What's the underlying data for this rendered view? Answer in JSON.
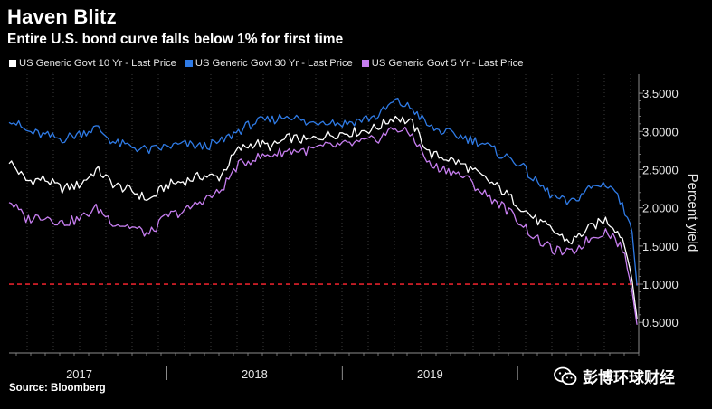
{
  "header": {
    "title": "Haven Blitz",
    "subtitle": "Entire U.S. bond curve falls below 1% for first time"
  },
  "footer": {
    "source": "Source: Bloomberg",
    "watermark": "彭博环球财经"
  },
  "colors": {
    "background": "#000000",
    "series_10y": "#ffffff",
    "series_30y": "#2f7be6",
    "series_5y": "#c77ef0",
    "reference_line": "#e0202a",
    "axis": "#8c8c8c"
  },
  "chart_data": {
    "type": "line",
    "title": "Haven Blitz",
    "subtitle": "Entire U.S. bond curve falls below 1% for first time",
    "xlabel": "",
    "ylabel": "Percent yield",
    "ylim": [
      0.1,
      3.75
    ],
    "xlim": [
      2016.6,
      2020.19
    ],
    "x_tick_labels": [
      {
        "label": "2017",
        "x": 2017.0
      },
      {
        "label": "2018",
        "x": 2018.0
      },
      {
        "label": "2019",
        "x": 2019.0
      }
    ],
    "x_year_boundaries": [
      2017.5,
      2018.5,
      2019.5
    ],
    "y_ticks": [
      0.5,
      1.0,
      1.5,
      2.0,
      2.5,
      3.0,
      3.5
    ],
    "y_tick_labels": [
      "0.5000",
      "1.0000",
      "1.5000",
      "2.0000",
      "2.5000",
      "3.0000",
      "3.5000"
    ],
    "reference_line": {
      "y": 1.0,
      "style": "dashed",
      "label": ""
    },
    "legend_position": "top-left",
    "series": [
      {
        "name": "US Generic Govt 10 Yr - Last Price",
        "key": "10y",
        "color": "#ffffff",
        "x": [
          2016.6,
          2016.7,
          2016.8,
          2016.9,
          2017.0,
          2017.1,
          2017.2,
          2017.3,
          2017.4,
          2017.5,
          2017.6,
          2017.7,
          2017.8,
          2017.9,
          2018.0,
          2018.1,
          2018.2,
          2018.3,
          2018.4,
          2018.5,
          2018.6,
          2018.7,
          2018.8,
          2018.9,
          2019.0,
          2019.1,
          2019.2,
          2019.3,
          2019.4,
          2019.5,
          2019.6,
          2019.7,
          2019.8,
          2019.9,
          2020.0,
          2020.05,
          2020.1,
          2020.15,
          2020.18
        ],
        "values": [
          2.62,
          2.35,
          2.38,
          2.25,
          2.3,
          2.5,
          2.3,
          2.22,
          2.1,
          2.3,
          2.35,
          2.42,
          2.4,
          2.75,
          2.85,
          2.8,
          2.92,
          2.88,
          2.95,
          2.98,
          3.0,
          3.05,
          3.2,
          3.1,
          2.7,
          2.65,
          2.55,
          2.4,
          2.25,
          2.05,
          1.85,
          1.7,
          1.55,
          1.72,
          1.85,
          1.75,
          1.6,
          1.1,
          0.55
        ]
      },
      {
        "name": "US Generic Govt 30 Yr - Last Price",
        "key": "30y",
        "color": "#2f7be6",
        "x": [
          2016.6,
          2016.7,
          2016.8,
          2016.9,
          2017.0,
          2017.1,
          2017.2,
          2017.3,
          2017.4,
          2017.5,
          2017.6,
          2017.7,
          2017.8,
          2017.9,
          2018.0,
          2018.1,
          2018.2,
          2018.3,
          2018.4,
          2018.5,
          2018.6,
          2018.7,
          2018.8,
          2018.9,
          2019.0,
          2019.1,
          2019.2,
          2019.3,
          2019.4,
          2019.5,
          2019.6,
          2019.7,
          2019.8,
          2019.9,
          2020.0,
          2020.05,
          2020.1,
          2020.15,
          2020.18
        ],
        "values": [
          3.18,
          3.0,
          2.95,
          2.9,
          2.97,
          3.05,
          2.85,
          2.8,
          2.75,
          2.8,
          2.83,
          2.8,
          2.85,
          3.0,
          3.12,
          3.15,
          3.22,
          3.1,
          3.15,
          3.1,
          3.15,
          3.2,
          3.4,
          3.3,
          3.05,
          2.98,
          2.92,
          2.85,
          2.7,
          2.6,
          2.35,
          2.15,
          2.05,
          2.25,
          2.32,
          2.25,
          2.0,
          1.75,
          0.98
        ]
      },
      {
        "name": "US Generic Govt 5 Yr - Last Price",
        "key": "5y",
        "color": "#c77ef0",
        "x": [
          2016.6,
          2016.7,
          2016.8,
          2016.9,
          2017.0,
          2017.1,
          2017.2,
          2017.3,
          2017.4,
          2017.5,
          2017.6,
          2017.7,
          2017.8,
          2017.9,
          2018.0,
          2018.1,
          2018.2,
          2018.3,
          2018.4,
          2018.5,
          2018.6,
          2018.7,
          2018.8,
          2018.9,
          2019.0,
          2019.1,
          2019.2,
          2019.3,
          2019.4,
          2019.5,
          2019.6,
          2019.7,
          2019.8,
          2019.9,
          2020.0,
          2020.05,
          2020.1,
          2020.15,
          2020.18
        ],
        "values": [
          2.1,
          1.85,
          1.9,
          1.8,
          1.85,
          2.0,
          1.8,
          1.75,
          1.65,
          1.9,
          1.95,
          2.1,
          2.2,
          2.55,
          2.65,
          2.7,
          2.75,
          2.75,
          2.8,
          2.82,
          2.85,
          2.9,
          3.05,
          2.95,
          2.55,
          2.5,
          2.4,
          2.2,
          2.05,
          1.85,
          1.6,
          1.45,
          1.4,
          1.58,
          1.7,
          1.62,
          1.45,
          0.95,
          0.47
        ]
      }
    ]
  }
}
